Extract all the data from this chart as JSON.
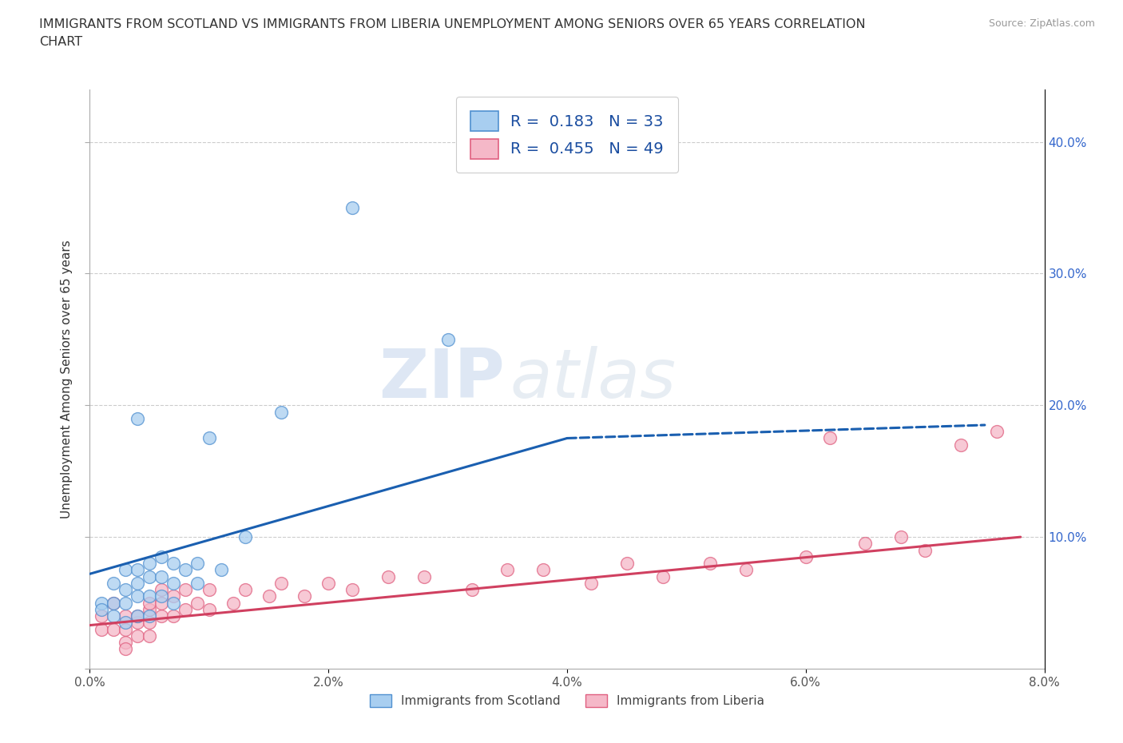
{
  "title_line1": "IMMIGRANTS FROM SCOTLAND VS IMMIGRANTS FROM LIBERIA UNEMPLOYMENT AMONG SENIORS OVER 65 YEARS CORRELATION",
  "title_line2": "CHART",
  "source": "Source: ZipAtlas.com",
  "ylabel": "Unemployment Among Seniors over 65 years",
  "xlim": [
    0.0,
    0.08
  ],
  "ylim": [
    0.0,
    0.44
  ],
  "xticks": [
    0.0,
    0.02,
    0.04,
    0.06,
    0.08
  ],
  "xticklabels": [
    "0.0%",
    "2.0%",
    "4.0%",
    "6.0%",
    "8.0%"
  ],
  "yticks": [
    0.0,
    0.1,
    0.2,
    0.3,
    0.4
  ],
  "ytick_right_labels": [
    "",
    "10.0%",
    "20.0%",
    "30.0%",
    "40.0%"
  ],
  "scotland_color": "#a8cef0",
  "liberia_color": "#f5b8c8",
  "scotland_edge": "#5090d0",
  "liberia_edge": "#e06080",
  "trend_scotland_color": "#1a5fb0",
  "trend_liberia_color": "#d04060",
  "scotland_R": 0.183,
  "scotland_N": 33,
  "liberia_R": 0.455,
  "liberia_N": 49,
  "legend_text_color": "#1a4da0",
  "scotland_x": [
    0.001,
    0.001,
    0.002,
    0.002,
    0.002,
    0.003,
    0.003,
    0.003,
    0.003,
    0.004,
    0.004,
    0.004,
    0.004,
    0.004,
    0.005,
    0.005,
    0.005,
    0.005,
    0.006,
    0.006,
    0.006,
    0.007,
    0.007,
    0.007,
    0.008,
    0.009,
    0.009,
    0.01,
    0.011,
    0.013,
    0.016,
    0.022,
    0.03
  ],
  "scotland_y": [
    0.05,
    0.045,
    0.04,
    0.065,
    0.05,
    0.035,
    0.05,
    0.06,
    0.075,
    0.04,
    0.055,
    0.065,
    0.075,
    0.19,
    0.04,
    0.055,
    0.07,
    0.08,
    0.055,
    0.07,
    0.085,
    0.05,
    0.065,
    0.08,
    0.075,
    0.065,
    0.08,
    0.175,
    0.075,
    0.1,
    0.195,
    0.35,
    0.25
  ],
  "liberia_x": [
    0.001,
    0.001,
    0.002,
    0.002,
    0.003,
    0.003,
    0.003,
    0.003,
    0.004,
    0.004,
    0.004,
    0.005,
    0.005,
    0.005,
    0.005,
    0.006,
    0.006,
    0.006,
    0.007,
    0.007,
    0.008,
    0.008,
    0.009,
    0.01,
    0.01,
    0.012,
    0.013,
    0.015,
    0.016,
    0.018,
    0.02,
    0.022,
    0.025,
    0.028,
    0.032,
    0.035,
    0.038,
    0.042,
    0.045,
    0.048,
    0.052,
    0.055,
    0.06,
    0.062,
    0.065,
    0.068,
    0.07,
    0.073,
    0.076
  ],
  "liberia_y": [
    0.04,
    0.03,
    0.05,
    0.03,
    0.04,
    0.02,
    0.03,
    0.015,
    0.035,
    0.025,
    0.04,
    0.035,
    0.045,
    0.025,
    0.05,
    0.04,
    0.05,
    0.06,
    0.04,
    0.055,
    0.045,
    0.06,
    0.05,
    0.045,
    0.06,
    0.05,
    0.06,
    0.055,
    0.065,
    0.055,
    0.065,
    0.06,
    0.07,
    0.07,
    0.06,
    0.075,
    0.075,
    0.065,
    0.08,
    0.07,
    0.08,
    0.075,
    0.085,
    0.175,
    0.095,
    0.1,
    0.09,
    0.17,
    0.18
  ],
  "watermark_zip": "ZIP",
  "watermark_atlas": "atlas",
  "background_color": "#ffffff",
  "grid_color": "#cccccc",
  "scotland_trend_x0": 0.0,
  "scotland_trend_y0": 0.072,
  "scotland_trend_x1": 0.04,
  "scotland_trend_y1": 0.175,
  "scotland_trend_xdash": 0.075,
  "scotland_trend_ydash": 0.185,
  "liberia_trend_x0": 0.0,
  "liberia_trend_y0": 0.033,
  "liberia_trend_x1": 0.078,
  "liberia_trend_y1": 0.1
}
